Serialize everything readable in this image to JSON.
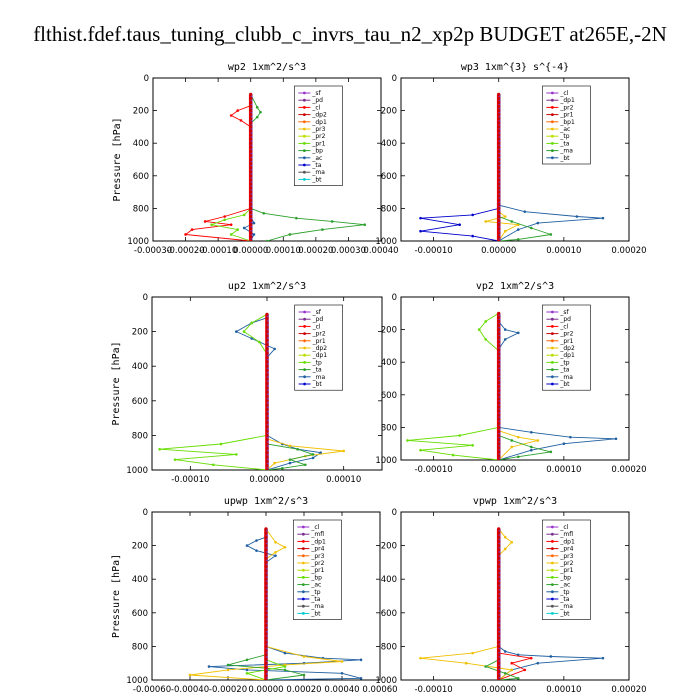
{
  "page_title": "flthist.fdef.taus_tuning_clubb_c_invrs_tau_n2_xp2p  BUDGET at265E,-2N",
  "chart_data": [
    {
      "type": "line",
      "title": "wp2   1xm^2/s^3",
      "ylabel": "Pressure [hPa]",
      "yticks": [
        "0",
        "200",
        "400",
        "600",
        "800",
        "1000"
      ],
      "ylim": [
        1000,
        0
      ],
      "xlim": [
        -0.0003,
        0.0004
      ],
      "xticks": [
        "-0.00030",
        "-0.00020",
        "-0.00010",
        "0.00000",
        "0.00010",
        "0.00020",
        "0.00030",
        "0.00040"
      ],
      "legend": [
        "_sf",
        "_pd",
        "_cl",
        "_dp2",
        "_dp1",
        "_pr3",
        "_pr2",
        "_pr1",
        "_bp",
        "_ac",
        "_ta",
        "_ma",
        "_bt"
      ],
      "series": [
        {
          "color": "#ff0000",
          "x": [
            0,
            0,
            -4e-05,
            -6e-05,
            -3e-05,
            0,
            0,
            -8e-05,
            -0.00014,
            -6e-05,
            -0.00018,
            -0.0002,
            0
          ],
          "y": [
            100,
            170,
            200,
            230,
            260,
            300,
            800,
            850,
            880,
            900,
            930,
            960,
            1000
          ]
        },
        {
          "color": "#2ca02c",
          "x": [
            0,
            2e-05,
            3e-05,
            2e-05,
            0,
            0,
            4e-05,
            0.00014,
            0.00025,
            0.00035,
            0.00022,
            0.00012,
            5e-05
          ],
          "y": [
            100,
            180,
            210,
            240,
            280,
            800,
            830,
            860,
            880,
            900,
            930,
            960,
            1000
          ]
        },
        {
          "color": "#66dd00",
          "x": [
            0,
            0,
            -2e-05,
            -8e-05,
            -0.00012,
            -4e-05,
            -6e-05,
            0
          ],
          "y": [
            100,
            800,
            840,
            870,
            900,
            930,
            960,
            1000
          ]
        },
        {
          "color": "#1f5fa0",
          "x": [
            0,
            0,
            1e-05,
            -2e-05,
            1e-05,
            0
          ],
          "y": [
            100,
            850,
            890,
            920,
            960,
            1000
          ]
        }
      ]
    },
    {
      "type": "line",
      "title": "wp3   1xm^{3} s^{-4}",
      "ylabel": "",
      "yticks": [
        "0",
        "200",
        "400",
        "600",
        "800",
        "1000"
      ],
      "ylim": [
        1000,
        0
      ],
      "xlim": [
        -0.00015,
        0.0002
      ],
      "xticks": [
        "-0.00010",
        "0.00000",
        "0.00010",
        "0.00020"
      ],
      "legend": [
        "_cl",
        "_dp1",
        "_pr2",
        "_pr1",
        "_bp1",
        "_ac",
        "_tp",
        "_ta",
        "_ma",
        "_bt"
      ],
      "series": [
        {
          "color": "#1f5fa0",
          "x": [
            0,
            0,
            4e-05,
            0.00012,
            0.00016,
            6e-05,
            3e-05,
            0
          ],
          "y": [
            100,
            780,
            820,
            850,
            860,
            890,
            930,
            1000
          ]
        },
        {
          "color": "#0000cc",
          "x": [
            0,
            0,
            -4e-05,
            -0.00012,
            -6e-05,
            -0.00012,
            -4e-05,
            0
          ],
          "y": [
            100,
            800,
            840,
            860,
            900,
            940,
            970,
            1000
          ]
        },
        {
          "color": "#f0c000",
          "x": [
            0,
            0,
            1e-05,
            -2e-05,
            3e-05,
            1e-05,
            0
          ],
          "y": [
            100,
            820,
            850,
            880,
            900,
            940,
            1000
          ]
        },
        {
          "color": "#2ca02c",
          "x": [
            0,
            0,
            2e-05,
            5e-05,
            8e-05,
            3e-05,
            0
          ],
          "y": [
            100,
            850,
            880,
            920,
            960,
            990,
            1000
          ]
        }
      ]
    },
    {
      "type": "line",
      "title": "up2   1xm^2/s^3",
      "ylabel": "Pressure [hPa]",
      "yticks": [
        "0",
        "200",
        "400",
        "600",
        "800",
        "1000"
      ],
      "ylim": [
        1000,
        0
      ],
      "xlim": [
        -0.00015,
        0.00015
      ],
      "xticks": [
        "-0.00010",
        "0.00000",
        "0.00010"
      ],
      "legend": [
        "_sf",
        "_pd",
        "_cl",
        "_pr2",
        "_pr1",
        "_dp2",
        "_dp1",
        "_tp",
        "_ta",
        "_ma",
        "_bt"
      ],
      "series": [
        {
          "color": "#1f5fa0",
          "x": [
            0,
            0,
            -2e-05,
            -4e-05,
            -2e-05,
            1e-05,
            0,
            0,
            2e-05,
            4e-05,
            7e-05,
            6e-05,
            3e-05,
            0
          ],
          "y": [
            100,
            120,
            150,
            200,
            240,
            300,
            350,
            800,
            850,
            880,
            900,
            930,
            960,
            1000
          ]
        },
        {
          "color": "#66dd00",
          "x": [
            0,
            -2e-05,
            -3e-05,
            -1e-05,
            0,
            0,
            -6e-05,
            -0.00014,
            -4e-05,
            -0.00012,
            -7e-05,
            0
          ],
          "y": [
            100,
            150,
            200,
            260,
            330,
            800,
            850,
            880,
            910,
            940,
            970,
            1000
          ]
        },
        {
          "color": "#f0c000",
          "x": [
            0,
            0,
            3e-05,
            0.0001,
            5e-05,
            1e-05,
            0
          ],
          "y": [
            100,
            820,
            860,
            890,
            920,
            960,
            1000
          ]
        },
        {
          "color": "#2ca02c",
          "x": [
            0,
            0,
            4e-05,
            6e-05,
            3e-05,
            5e-05,
            2e-05,
            0
          ],
          "y": [
            100,
            850,
            880,
            910,
            940,
            970,
            990,
            1000
          ]
        }
      ]
    },
    {
      "type": "line",
      "title": "vp2   1xm^2/s^3",
      "ylabel": "",
      "yticks": [
        "0",
        "200",
        "400",
        "600",
        "800",
        "1000"
      ],
      "ylim": [
        1000,
        0
      ],
      "xlim": [
        -0.00015,
        0.0002
      ],
      "xticks": [
        "-0.00010",
        "0.00000",
        "0.00010",
        "0.00020"
      ],
      "legend": [
        "_sf",
        "_pd",
        "_cl",
        "_pr2",
        "_pr1",
        "_dp2",
        "_dp1",
        "_tp",
        "_ta",
        "_ma",
        "_bt"
      ],
      "series": [
        {
          "color": "#1f5fa0",
          "x": [
            0,
            0,
            1e-05,
            3e-05,
            1e-05,
            0,
            0,
            5e-05,
            0.00011,
            0.00018,
            0.0001,
            5e-05,
            0
          ],
          "y": [
            100,
            150,
            200,
            220,
            260,
            320,
            800,
            830,
            860,
            870,
            900,
            940,
            1000
          ]
        },
        {
          "color": "#66dd00",
          "x": [
            0,
            -2e-05,
            -3e-05,
            -2e-05,
            0,
            0,
            -6e-05,
            -0.00014,
            -4e-05,
            -0.00012,
            -7e-05,
            0
          ],
          "y": [
            100,
            150,
            200,
            260,
            330,
            800,
            850,
            880,
            910,
            940,
            970,
            1000
          ]
        },
        {
          "color": "#f0c000",
          "x": [
            0,
            0,
            3e-05,
            6e-05,
            2e-05,
            0
          ],
          "y": [
            100,
            820,
            860,
            880,
            920,
            1000
          ]
        },
        {
          "color": "#2ca02c",
          "x": [
            0,
            0,
            2e-05,
            5e-05,
            8e-05,
            3e-05,
            0
          ],
          "y": [
            100,
            850,
            880,
            920,
            950,
            980,
            1000
          ]
        }
      ]
    },
    {
      "type": "line",
      "title": "upwp   1xm^2/s^3",
      "ylabel": "Pressure [hPa]",
      "yticks": [
        "0",
        "200",
        "400",
        "600",
        "800",
        "1000"
      ],
      "ylim": [
        1000,
        0
      ],
      "xlim": [
        -0.0006,
        0.0006
      ],
      "xticks": [
        "-0.00060",
        "-0.00040",
        "-0.00020",
        "0.00000",
        "0.00020",
        "0.00040",
        "0.00060"
      ],
      "legend": [
        "_cl",
        "_mfl",
        "_dp1",
        "_pr4",
        "_pr3",
        "_pr2",
        "_pr1",
        "_bp",
        "_ac",
        "_tp",
        "_ta",
        "_ma",
        "_bt"
      ],
      "series": [
        {
          "color": "#1f5fa0",
          "x": [
            0,
            0,
            -5e-05,
            -0.0001,
            -5e-05,
            5e-05,
            0,
            0,
            0.0001,
            0.0003,
            0.0005,
            0.0002,
            -0.0003,
            -0.0001,
            0.0004,
            0.0005,
            0
          ],
          "y": [
            100,
            150,
            170,
            200,
            230,
            260,
            300,
            800,
            840,
            870,
            880,
            900,
            920,
            940,
            960,
            990,
            1000
          ]
        },
        {
          "color": "#f0c000",
          "x": [
            0,
            5e-05,
            0.0001,
            5e-05,
            0,
            0,
            0.0002,
            0.0004,
            0.0001,
            -0.0002,
            -0.0004,
            0
          ],
          "y": [
            100,
            180,
            210,
            240,
            280,
            800,
            860,
            890,
            910,
            940,
            970,
            1000
          ]
        },
        {
          "color": "#2ca02c",
          "x": [
            0,
            0,
            -0.0001,
            -0.0002,
            0.0001,
            0.0002,
            0
          ],
          "y": [
            100,
            850,
            880,
            910,
            940,
            970,
            1000
          ]
        },
        {
          "color": "#66dd00",
          "x": [
            0,
            0,
            0.0001,
            -0.0001,
            0
          ],
          "y": [
            100,
            880,
            920,
            960,
            1000
          ]
        }
      ]
    },
    {
      "type": "line",
      "title": "vpwp   1xm^2/s^3",
      "ylabel": "",
      "yticks": [
        "0",
        "200",
        "400",
        "600",
        "800",
        "1000"
      ],
      "ylim": [
        1000,
        0
      ],
      "xlim": [
        -0.00015,
        0.0002
      ],
      "xticks": [
        "-0.00010",
        "0.00000",
        "0.00010",
        "0.00020"
      ],
      "legend": [
        "_cl",
        "_mfl",
        "_dp1",
        "_pr4",
        "_pr3",
        "_pr2",
        "_pr1",
        "_bp",
        "_ac",
        "_tp",
        "_ta",
        "_ma",
        "_bt"
      ],
      "series": [
        {
          "color": "#1f5fa0",
          "x": [
            0,
            0,
            1e-05,
            3e-05,
            8e-05,
            0.00016,
            6e-05,
            2e-05,
            0
          ],
          "y": [
            100,
            800,
            830,
            850,
            860,
            870,
            900,
            940,
            1000
          ]
        },
        {
          "color": "#f0c000",
          "x": [
            0,
            1e-05,
            2e-05,
            1e-05,
            0,
            0,
            -4e-05,
            -0.00012,
            -5e-05,
            2e-05,
            0
          ],
          "y": [
            100,
            150,
            180,
            220,
            260,
            800,
            840,
            870,
            900,
            940,
            1000
          ]
        },
        {
          "color": "#ff0000",
          "x": [
            0,
            0,
            5e-05,
            2e-05,
            4e-05,
            0
          ],
          "y": [
            100,
            840,
            870,
            900,
            940,
            1000
          ]
        },
        {
          "color": "#2ca02c",
          "x": [
            0,
            0,
            -2e-05,
            1e-05,
            3e-05,
            0
          ],
          "y": [
            100,
            880,
            920,
            960,
            990,
            1000
          ]
        }
      ]
    }
  ]
}
